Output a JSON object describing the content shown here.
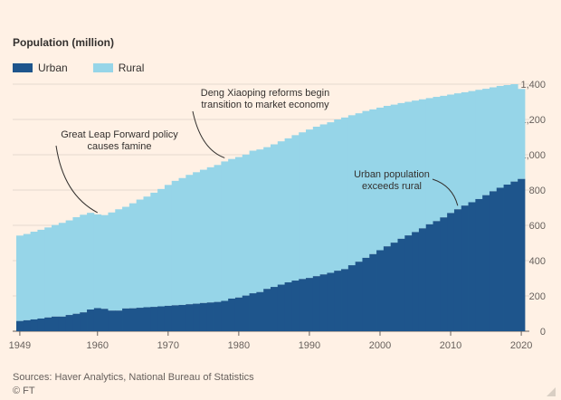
{
  "ylabel": "Population (million)",
  "legend": {
    "urban": {
      "label": "Urban",
      "color": "#1e558c"
    },
    "rural": {
      "label": "Rural",
      "color": "#96d5e8"
    }
  },
  "source": "Sources: Haver Analytics, National Bureau of Statistics",
  "ft": "© FT",
  "chart_data": {
    "type": "area",
    "stacked": true,
    "x": [
      1949,
      1950,
      1951,
      1952,
      1953,
      1954,
      1955,
      1956,
      1957,
      1958,
      1959,
      1960,
      1961,
      1962,
      1963,
      1964,
      1965,
      1966,
      1967,
      1968,
      1969,
      1970,
      1971,
      1972,
      1973,
      1974,
      1975,
      1976,
      1977,
      1978,
      1979,
      1980,
      1981,
      1982,
      1983,
      1984,
      1985,
      1986,
      1987,
      1988,
      1989,
      1990,
      1991,
      1992,
      1993,
      1994,
      1995,
      1996,
      1997,
      1998,
      1999,
      2000,
      2001,
      2002,
      2003,
      2004,
      2005,
      2006,
      2007,
      2008,
      2009,
      2010,
      2011,
      2012,
      2013,
      2014,
      2015,
      2016,
      2017,
      2018,
      2019,
      2020
    ],
    "series": [
      {
        "name": "Urban",
        "color": "#1e558c",
        "values": [
          58,
          62,
          67,
          72,
          78,
          83,
          83,
          92,
          99,
          107,
          123,
          131,
          127,
          117,
          117,
          129,
          130,
          133,
          136,
          138,
          141,
          144,
          147,
          149,
          153,
          156,
          160,
          163,
          166,
          172,
          185,
          191,
          202,
          215,
          222,
          240,
          251,
          264,
          277,
          287,
          296,
          302,
          312,
          322,
          331,
          343,
          352,
          374,
          394,
          416,
          437,
          459,
          481,
          502,
          524,
          543,
          562,
          583,
          606,
          624,
          645,
          670,
          691,
          712,
          731,
          749,
          771,
          793,
          813,
          831,
          848,
          863
        ]
      },
      {
        "name": "Rural",
        "color": "#96d5e8",
        "values": [
          484,
          489,
          497,
          503,
          510,
          519,
          531,
          536,
          547,
          553,
          548,
          531,
          531,
          556,
          574,
          576,
          595,
          613,
          627,
          647,
          665,
          685,
          705,
          719,
          733,
          745,
          755,
          766,
          776,
          790,
          791,
          796,
          799,
          808,
          808,
          803,
          808,
          812,
          816,
          824,
          831,
          841,
          847,
          850,
          853,
          857,
          859,
          850,
          841,
          832,
          820,
          808,
          796,
          782,
          769,
          757,
          745,
          731,
          715,
          704,
          689,
          671,
          657,
          642,
          630,
          619,
          603,
          589,
          577,
          564,
          552,
          510
        ]
      }
    ],
    "yticks": [
      0,
      200,
      400,
      600,
      800,
      1000,
      1200,
      1400
    ],
    "ylim": [
      0,
      1400
    ],
    "xticks": [
      1949,
      1960,
      1970,
      1980,
      1990,
      2000,
      2010,
      2020
    ],
    "annotations": [
      {
        "text": [
          "Great Leap Forward policy",
          "causes famine"
        ],
        "target_year": 1960
      },
      {
        "text": [
          "Deng Xiaoping reforms begin",
          "transition to market economy"
        ],
        "target_year": 1978
      },
      {
        "text": [
          "Urban population",
          "exceeds rural"
        ],
        "target_year": 2011
      }
    ]
  }
}
